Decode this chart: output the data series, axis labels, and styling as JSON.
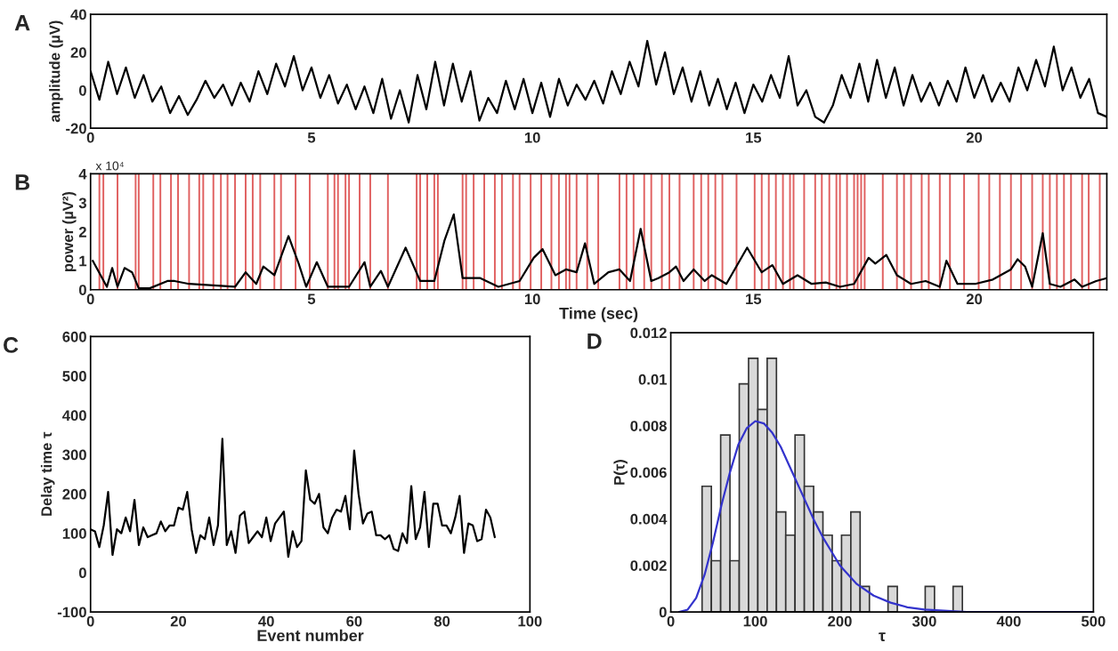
{
  "chart_data": [
    {
      "type": "line",
      "title": "A",
      "ylabel": "amplitude (µV)",
      "xlim": [
        0,
        23
      ],
      "xticks": [
        0,
        5,
        10,
        15,
        20
      ],
      "ylim": [
        -20,
        40
      ],
      "yticks": [
        -20,
        0,
        20,
        40
      ],
      "series": [
        {
          "color": "#000000",
          "x": [
            0,
            0.2,
            0.4,
            0.6,
            0.8,
            1.0,
            1.2,
            1.4,
            1.6,
            1.8,
            2.0,
            2.2,
            2.4,
            2.6,
            2.8,
            3.0,
            3.2,
            3.4,
            3.6,
            3.8,
            4.0,
            4.2,
            4.4,
            4.6,
            4.8,
            5.0,
            5.2,
            5.4,
            5.6,
            5.8,
            6.0,
            6.2,
            6.4,
            6.6,
            6.8,
            7.0,
            7.2,
            7.4,
            7.6,
            7.8,
            8.0,
            8.2,
            8.4,
            8.6,
            8.8,
            9.0,
            9.2,
            9.4,
            9.6,
            9.8,
            10.0,
            10.2,
            10.4,
            10.6,
            10.8,
            11.0,
            11.2,
            11.4,
            11.6,
            11.8,
            12.0,
            12.2,
            12.4,
            12.6,
            12.8,
            13.0,
            13.2,
            13.4,
            13.6,
            13.8,
            14.0,
            14.2,
            14.4,
            14.6,
            14.8,
            15.0,
            15.2,
            15.4,
            15.6,
            15.8,
            16.0,
            16.2,
            16.4,
            16.6,
            16.8,
            17.0,
            17.2,
            17.4,
            17.6,
            17.8,
            18.0,
            18.2,
            18.4,
            18.6,
            18.8,
            19.0,
            19.2,
            19.4,
            19.6,
            19.8,
            20.0,
            20.2,
            20.4,
            20.6,
            20.8,
            21.0,
            21.2,
            21.4,
            21.6,
            21.8,
            22.0,
            22.2,
            22.4,
            22.6,
            22.8,
            23.0
          ],
          "values": [
            10,
            -5,
            15,
            -2,
            12,
            -4,
            8,
            -6,
            2,
            -12,
            -3,
            -13,
            -5,
            5,
            -4,
            3,
            -8,
            4,
            -6,
            10,
            -2,
            14,
            2,
            18,
            0,
            12,
            -4,
            8,
            -7,
            3,
            -10,
            2,
            -12,
            6,
            -15,
            0,
            -17,
            8,
            -10,
            15,
            -8,
            14,
            -6,
            10,
            -16,
            -4,
            -12,
            5,
            -10,
            6,
            -12,
            4,
            -14,
            6,
            -8,
            3,
            -5,
            5,
            -7,
            10,
            -2,
            15,
            2,
            26,
            3,
            20,
            -2,
            12,
            -6,
            10,
            -8,
            6,
            -10,
            4,
            -12,
            3,
            -6,
            8,
            -4,
            18,
            -8,
            0,
            -14,
            -17,
            -8,
            8,
            -4,
            14,
            -6,
            16,
            -4,
            12,
            -8,
            8,
            -6,
            4,
            -8,
            5,
            -6,
            12,
            -4,
            8,
            -6,
            4,
            -6,
            12,
            0,
            16,
            2,
            23,
            0,
            12,
            -4,
            6,
            -12,
            -14
          ]
        }
      ]
    },
    {
      "type": "line",
      "title": "B",
      "xlabel": "Time (sec)",
      "ylabel": "power (µV²)",
      "annotations": [
        "x 10⁴"
      ],
      "xlim": [
        0,
        23
      ],
      "xticks": [
        0,
        5,
        10,
        15,
        20
      ],
      "ylim": [
        0,
        4
      ],
      "yticks": [
        0,
        1,
        2,
        3,
        4
      ],
      "series": [
        {
          "color": "#000000",
          "x": [
            0.05,
            0.37,
            0.49,
            0.61,
            0.77,
            0.94,
            1.09,
            1.34,
            1.74,
            1.9,
            2.23,
            2.78,
            3.27,
            3.51,
            3.75,
            3.91,
            4.16,
            4.48,
            4.71,
            4.88,
            5.12,
            5.37,
            5.6,
            5.85,
            6.2,
            6.33,
            6.57,
            6.73,
            7.13,
            7.46,
            7.78,
            8.01,
            8.22,
            8.42,
            8.82,
            9.23,
            9.71,
            10.03,
            10.23,
            10.52,
            10.76,
            11.0,
            11.19,
            11.4,
            11.72,
            11.97,
            12.21,
            12.45,
            12.69,
            12.85,
            13.1,
            13.25,
            13.42,
            13.65,
            13.9,
            14.06,
            14.39,
            14.86,
            15.19,
            15.43,
            15.67,
            16.0,
            16.32,
            16.64,
            16.96,
            17.28,
            17.61,
            17.76,
            18.01,
            18.25,
            18.57,
            18.9,
            19.22,
            19.37,
            19.62,
            20.02,
            20.42,
            20.83,
            20.98,
            21.15,
            21.31,
            21.55,
            21.71,
            21.95,
            22.27,
            22.44,
            22.76,
            23.0
          ],
          "values": [
            1.0,
            0.1,
            0.75,
            0.1,
            0.75,
            0.6,
            0.05,
            0.05,
            0.3,
            0.3,
            0.2,
            0.15,
            0.1,
            0.6,
            0.2,
            0.8,
            0.5,
            1.85,
            0.9,
            0.1,
            0.95,
            0.1,
            0.1,
            0.1,
            0.95,
            0.1,
            0.65,
            0.1,
            1.45,
            0.3,
            0.3,
            1.7,
            2.6,
            0.4,
            0.4,
            0.1,
            0.3,
            1.1,
            1.4,
            0.5,
            0.7,
            0.6,
            1.6,
            0.2,
            0.6,
            0.7,
            0.3,
            2.1,
            0.3,
            0.4,
            0.6,
            0.8,
            0.3,
            0.7,
            0.3,
            0.5,
            0.2,
            1.45,
            0.6,
            0.85,
            0.2,
            0.5,
            0.2,
            0.25,
            0.1,
            0.2,
            1.1,
            0.9,
            1.2,
            0.5,
            0.2,
            0.3,
            0.1,
            1.0,
            0.2,
            0.2,
            0.35,
            0.7,
            1.05,
            0.8,
            0.1,
            1.95,
            0.2,
            0.1,
            0.35,
            0.1,
            0.3,
            0.4
          ]
        }
      ],
      "ref_lines": [
        {
          "axis": "x",
          "value": 0.2,
          "color": "#e06060"
        },
        {
          "axis": "x",
          "value": 0.29,
          "color": "#e06060"
        },
        {
          "axis": "x",
          "value": 0.61,
          "color": "#e06060"
        },
        {
          "axis": "x",
          "value": 1.02,
          "color": "#e06060"
        },
        {
          "axis": "x",
          "value": 1.09,
          "color": "#e06060"
        },
        {
          "axis": "x",
          "value": 1.42,
          "color": "#e06060"
        },
        {
          "axis": "x",
          "value": 1.58,
          "color": "#e06060"
        },
        {
          "axis": "x",
          "value": 1.82,
          "color": "#e06060"
        },
        {
          "axis": "x",
          "value": 1.98,
          "color": "#e06060"
        },
        {
          "axis": "x",
          "value": 2.23,
          "color": "#e06060"
        },
        {
          "axis": "x",
          "value": 2.46,
          "color": "#e06060"
        },
        {
          "axis": "x",
          "value": 2.55,
          "color": "#e06060"
        },
        {
          "axis": "x",
          "value": 2.78,
          "color": "#e06060"
        },
        {
          "axis": "x",
          "value": 2.95,
          "color": "#e06060"
        },
        {
          "axis": "x",
          "value": 3.1,
          "color": "#e06060"
        },
        {
          "axis": "x",
          "value": 3.27,
          "color": "#e06060"
        },
        {
          "axis": "x",
          "value": 3.51,
          "color": "#e06060"
        },
        {
          "axis": "x",
          "value": 3.67,
          "color": "#e06060"
        },
        {
          "axis": "x",
          "value": 3.84,
          "color": "#e06060"
        },
        {
          "axis": "x",
          "value": 4.16,
          "color": "#e06060"
        },
        {
          "axis": "x",
          "value": 4.31,
          "color": "#e06060"
        },
        {
          "axis": "x",
          "value": 4.64,
          "color": "#e06060"
        },
        {
          "axis": "x",
          "value": 4.96,
          "color": "#e06060"
        },
        {
          "axis": "x",
          "value": 5.37,
          "color": "#e06060"
        },
        {
          "axis": "x",
          "value": 5.52,
          "color": "#e06060"
        },
        {
          "axis": "x",
          "value": 5.6,
          "color": "#e06060"
        },
        {
          "axis": "x",
          "value": 5.77,
          "color": "#e06060"
        },
        {
          "axis": "x",
          "value": 5.85,
          "color": "#e06060"
        },
        {
          "axis": "x",
          "value": 6.09,
          "color": "#e06060"
        },
        {
          "axis": "x",
          "value": 6.33,
          "color": "#e06060"
        },
        {
          "axis": "x",
          "value": 6.73,
          "color": "#e06060"
        },
        {
          "axis": "x",
          "value": 7.38,
          "color": "#e06060"
        },
        {
          "axis": "x",
          "value": 7.46,
          "color": "#e06060"
        },
        {
          "axis": "x",
          "value": 7.62,
          "color": "#e06060"
        },
        {
          "axis": "x",
          "value": 7.78,
          "color": "#e06060"
        },
        {
          "axis": "x",
          "value": 7.86,
          "color": "#e06060"
        },
        {
          "axis": "x",
          "value": 8.42,
          "color": "#e06060"
        },
        {
          "axis": "x",
          "value": 8.5,
          "color": "#e06060"
        },
        {
          "axis": "x",
          "value": 8.67,
          "color": "#e06060"
        },
        {
          "axis": "x",
          "value": 8.91,
          "color": "#e06060"
        },
        {
          "axis": "x",
          "value": 9.15,
          "color": "#e06060"
        },
        {
          "axis": "x",
          "value": 9.31,
          "color": "#e06060"
        },
        {
          "axis": "x",
          "value": 9.56,
          "color": "#e06060"
        },
        {
          "axis": "x",
          "value": 9.71,
          "color": "#e06060"
        },
        {
          "axis": "x",
          "value": 9.96,
          "color": "#e06060"
        },
        {
          "axis": "x",
          "value": 10.2,
          "color": "#e06060"
        },
        {
          "axis": "x",
          "value": 10.43,
          "color": "#e06060"
        },
        {
          "axis": "x",
          "value": 10.6,
          "color": "#e06060"
        },
        {
          "axis": "x",
          "value": 10.76,
          "color": "#e06060"
        },
        {
          "axis": "x",
          "value": 10.84,
          "color": "#e06060"
        },
        {
          "axis": "x",
          "value": 11.0,
          "color": "#e06060"
        },
        {
          "axis": "x",
          "value": 11.24,
          "color": "#e06060"
        },
        {
          "axis": "x",
          "value": 11.49,
          "color": "#e06060"
        },
        {
          "axis": "x",
          "value": 11.97,
          "color": "#e06060"
        },
        {
          "axis": "x",
          "value": 12.13,
          "color": "#e06060"
        },
        {
          "axis": "x",
          "value": 12.29,
          "color": "#e06060"
        },
        {
          "axis": "x",
          "value": 12.53,
          "color": "#e06060"
        },
        {
          "axis": "x",
          "value": 12.69,
          "color": "#e06060"
        },
        {
          "axis": "x",
          "value": 12.93,
          "color": "#e06060"
        },
        {
          "axis": "x",
          "value": 13.1,
          "color": "#e06060"
        },
        {
          "axis": "x",
          "value": 13.33,
          "color": "#e06060"
        },
        {
          "axis": "x",
          "value": 13.65,
          "color": "#e06060"
        },
        {
          "axis": "x",
          "value": 13.82,
          "color": "#e06060"
        },
        {
          "axis": "x",
          "value": 13.98,
          "color": "#e06060"
        },
        {
          "axis": "x",
          "value": 14.14,
          "color": "#e06060"
        },
        {
          "axis": "x",
          "value": 14.3,
          "color": "#e06060"
        },
        {
          "axis": "x",
          "value": 14.62,
          "color": "#e06060"
        },
        {
          "axis": "x",
          "value": 15.03,
          "color": "#e06060"
        },
        {
          "axis": "x",
          "value": 15.19,
          "color": "#e06060"
        },
        {
          "axis": "x",
          "value": 15.35,
          "color": "#e06060"
        },
        {
          "axis": "x",
          "value": 15.51,
          "color": "#e06060"
        },
        {
          "axis": "x",
          "value": 15.67,
          "color": "#e06060"
        },
        {
          "axis": "x",
          "value": 15.83,
          "color": "#e06060"
        },
        {
          "axis": "x",
          "value": 15.91,
          "color": "#e06060"
        },
        {
          "axis": "x",
          "value": 16.15,
          "color": "#e06060"
        },
        {
          "axis": "x",
          "value": 16.4,
          "color": "#e06060"
        },
        {
          "axis": "x",
          "value": 16.55,
          "color": "#e06060"
        },
        {
          "axis": "x",
          "value": 16.72,
          "color": "#e06060"
        },
        {
          "axis": "x",
          "value": 16.88,
          "color": "#e06060"
        },
        {
          "axis": "x",
          "value": 16.96,
          "color": "#e06060"
        },
        {
          "axis": "x",
          "value": 17.12,
          "color": "#e06060"
        },
        {
          "axis": "x",
          "value": 17.28,
          "color": "#e06060"
        },
        {
          "axis": "x",
          "value": 17.36,
          "color": "#e06060"
        },
        {
          "axis": "x",
          "value": 17.44,
          "color": "#e06060"
        },
        {
          "axis": "x",
          "value": 17.52,
          "color": "#e06060"
        },
        {
          "axis": "x",
          "value": 17.93,
          "color": "#e06060"
        },
        {
          "axis": "x",
          "value": 18.25,
          "color": "#e06060"
        },
        {
          "axis": "x",
          "value": 18.41,
          "color": "#e06060"
        },
        {
          "axis": "x",
          "value": 18.57,
          "color": "#e06060"
        },
        {
          "axis": "x",
          "value": 18.81,
          "color": "#e06060"
        },
        {
          "axis": "x",
          "value": 18.97,
          "color": "#e06060"
        },
        {
          "axis": "x",
          "value": 19.22,
          "color": "#e06060"
        },
        {
          "axis": "x",
          "value": 19.45,
          "color": "#e06060"
        },
        {
          "axis": "x",
          "value": 19.77,
          "color": "#e06060"
        },
        {
          "axis": "x",
          "value": 20.1,
          "color": "#e06060"
        },
        {
          "axis": "x",
          "value": 20.34,
          "color": "#e06060"
        },
        {
          "axis": "x",
          "value": 20.58,
          "color": "#e06060"
        },
        {
          "axis": "x",
          "value": 20.83,
          "color": "#e06060"
        },
        {
          "axis": "x",
          "value": 21.06,
          "color": "#e06060"
        },
        {
          "axis": "x",
          "value": 21.31,
          "color": "#e06060"
        },
        {
          "axis": "x",
          "value": 21.55,
          "color": "#e06060"
        },
        {
          "axis": "x",
          "value": 21.71,
          "color": "#e06060"
        },
        {
          "axis": "x",
          "value": 21.87,
          "color": "#e06060"
        },
        {
          "axis": "x",
          "value": 22.03,
          "color": "#e06060"
        },
        {
          "axis": "x",
          "value": 22.19,
          "color": "#e06060"
        },
        {
          "axis": "x",
          "value": 22.44,
          "color": "#e06060"
        },
        {
          "axis": "x",
          "value": 22.59,
          "color": "#e06060"
        },
        {
          "axis": "x",
          "value": 22.84,
          "color": "#e06060"
        }
      ]
    },
    {
      "type": "line",
      "title": "C",
      "xlabel": "Event number",
      "ylabel": "Delay time τ",
      "xlim": [
        0,
        100
      ],
      "xticks": [
        0,
        20,
        40,
        60,
        80,
        100
      ],
      "ylim": [
        -100,
        600
      ],
      "yticks": [
        -100,
        0,
        100,
        200,
        300,
        400,
        500,
        600
      ],
      "series": [
        {
          "color": "#000000",
          "x": [
            0,
            1,
            2,
            3,
            4,
            5,
            6,
            7,
            8,
            9,
            10,
            11,
            12,
            13,
            14,
            15,
            16,
            17,
            18,
            19,
            20,
            21,
            22,
            23,
            24,
            25,
            26,
            27,
            28,
            29,
            30,
            31,
            32,
            33,
            34,
            35,
            36,
            37,
            38,
            39,
            40,
            41,
            42,
            43,
            44,
            45,
            46,
            47,
            48,
            49,
            50,
            51,
            52,
            53,
            54,
            55,
            56,
            57,
            58,
            59,
            60,
            61,
            62,
            63,
            64,
            65,
            66,
            67,
            68,
            69,
            70,
            71,
            72,
            73,
            74,
            75,
            76,
            77,
            78,
            79,
            80,
            81,
            82,
            83,
            84,
            85,
            86,
            87,
            88,
            89,
            90,
            91,
            92
          ],
          "values": [
            110,
            105,
            65,
            120,
            205,
            45,
            110,
            100,
            140,
            105,
            185,
            70,
            115,
            90,
            95,
            100,
            130,
            105,
            120,
            120,
            165,
            160,
            205,
            110,
            50,
            95,
            85,
            140,
            70,
            120,
            340,
            70,
            105,
            50,
            145,
            155,
            75,
            90,
            105,
            90,
            140,
            80,
            125,
            140,
            155,
            40,
            105,
            65,
            80,
            260,
            185,
            175,
            200,
            115,
            100,
            140,
            160,
            155,
            195,
            110,
            310,
            200,
            125,
            150,
            155,
            95,
            95,
            85,
            95,
            60,
            55,
            100,
            75,
            220,
            85,
            115,
            205,
            65,
            175,
            175,
            120,
            120,
            100,
            140,
            195,
            50,
            125,
            120,
            80,
            85,
            160,
            140,
            90
          ]
        }
      ]
    },
    {
      "type": "histogram",
      "title": "D",
      "xlabel": "τ",
      "ylabel": "P(τ)",
      "color": "#d9d9d9",
      "xlim": [
        0,
        500
      ],
      "xticks": [
        0,
        100,
        200,
        300,
        400,
        500
      ],
      "ylim": [
        0,
        0.012
      ],
      "yticks": [
        0,
        0.002,
        0.004,
        0.006,
        0.008,
        0.01,
        0.012
      ],
      "bins": [
        37,
        48,
        59,
        70,
        81,
        92,
        103,
        114,
        125,
        136,
        147,
        158,
        169,
        180,
        191,
        202,
        213,
        224,
        235,
        246,
        257,
        268,
        279,
        290,
        301,
        312,
        323,
        334,
        345
      ],
      "values": [
        0.0054,
        0.0022,
        0.0076,
        0.0022,
        0.0098,
        0.0109,
        0.0087,
        0.0109,
        0.0043,
        0.0033,
        0.0076,
        0.0054,
        0.0043,
        0.0033,
        0.0022,
        0.0033,
        0.0043,
        0.0011,
        null,
        null,
        0.0011,
        null,
        null,
        null,
        0.0011,
        null,
        null,
        0.0011
      ],
      "series": [
        {
          "type": "line",
          "color": "#3333cc",
          "x": [
            10,
            20,
            30,
            40,
            50,
            60,
            70,
            80,
            90,
            100,
            110,
            120,
            130,
            140,
            150,
            160,
            170,
            180,
            190,
            200,
            220,
            240,
            260,
            280,
            300,
            350,
            400,
            500
          ],
          "values": [
            0,
            0.0001,
            0.0006,
            0.0016,
            0.003,
            0.0046,
            0.006,
            0.0072,
            0.0079,
            0.0082,
            0.0081,
            0.0077,
            0.0071,
            0.0063,
            0.0055,
            0.0047,
            0.0039,
            0.0032,
            0.0026,
            0.002,
            0.0012,
            0.0007,
            0.0004,
            0.0002,
            0.0001,
            0,
            0,
            0
          ]
        }
      ]
    }
  ]
}
